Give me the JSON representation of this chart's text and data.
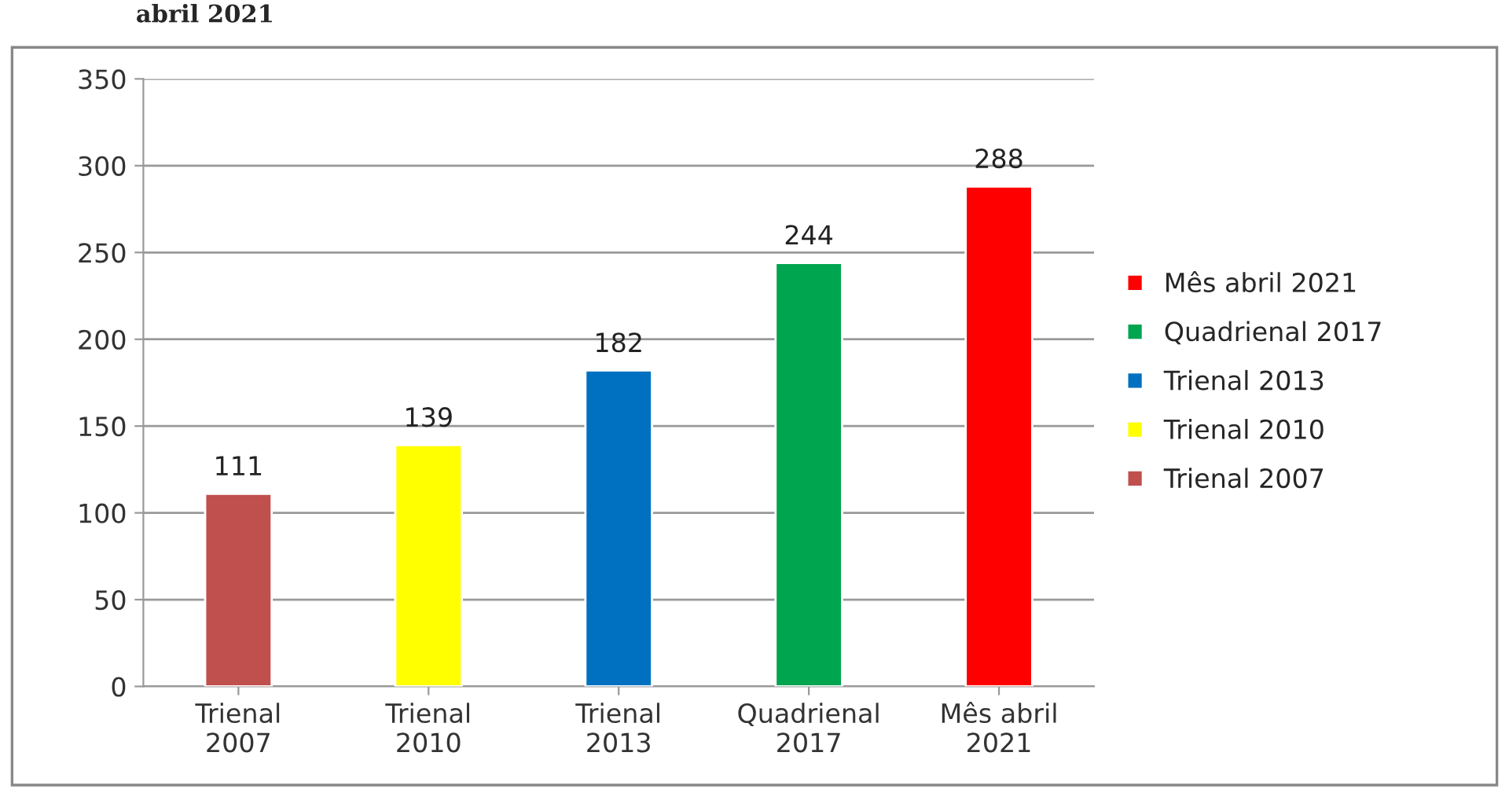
{
  "chart_data": {
    "type": "bar",
    "title": "abril 2021",
    "categories": [
      "Trienal\n2007",
      "Trienal\n2010",
      "Trienal\n2013",
      "Quadrienal\n2017",
      "Mês abril\n2021"
    ],
    "series": [
      {
        "name": "Mês abril 2021",
        "color": "#ff0000",
        "values": [
          null,
          null,
          null,
          null,
          288
        ]
      },
      {
        "name": "Quadrienal 2017",
        "color": "#00a550",
        "values": [
          null,
          null,
          null,
          244,
          null
        ]
      },
      {
        "name": "Trienal 2013",
        "color": "#0070c0",
        "values": [
          null,
          null,
          182,
          null,
          null
        ]
      },
      {
        "name": "Trienal 2010",
        "color": "#ffff00",
        "values": [
          null,
          139,
          null,
          null,
          null
        ]
      },
      {
        "name": "Trienal 2007",
        "color": "#c0504d",
        "values": [
          111,
          null,
          null,
          null,
          null
        ]
      }
    ],
    "ylim": [
      0,
      350
    ],
    "yticks": [
      0,
      50,
      100,
      150,
      200,
      250,
      300,
      350
    ],
    "grid": "y",
    "legend": "right",
    "data_labels": true
  }
}
